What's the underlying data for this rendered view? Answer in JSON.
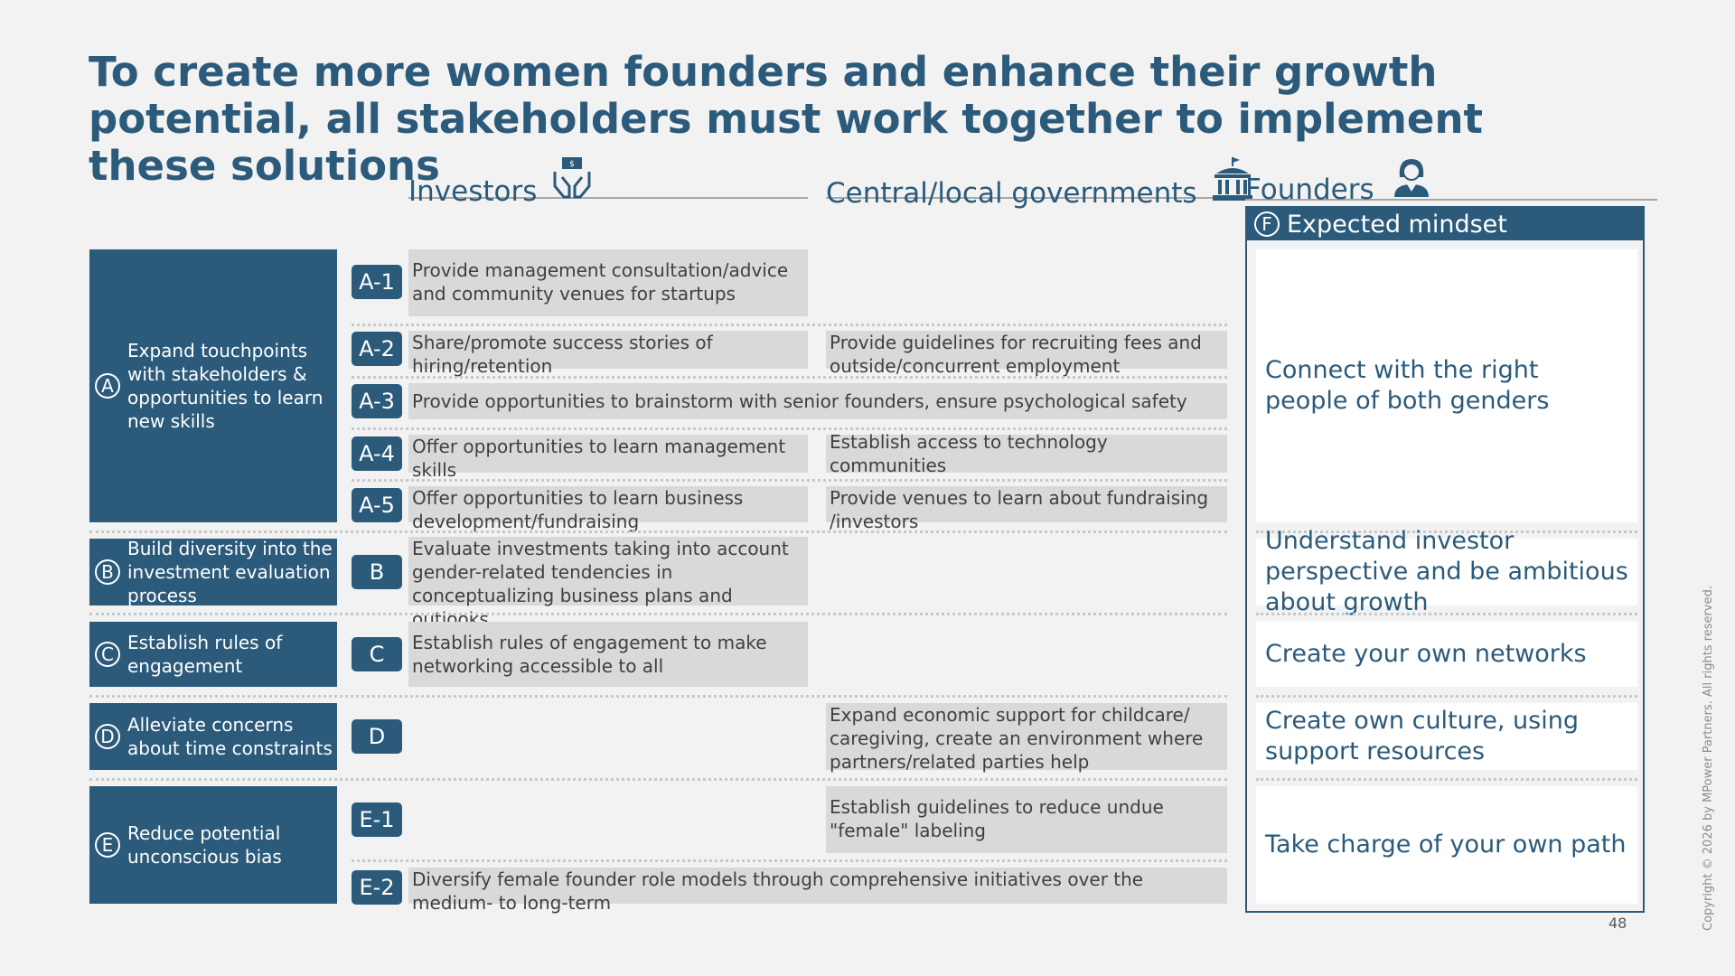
{
  "title": "To create more women founders and enhance their growth potential, all stakeholders must work together to implement these solutions",
  "columns": {
    "investors": "Investors",
    "governments": "Central/local governments",
    "founders": "Founders"
  },
  "categories": {
    "A": {
      "letter": "A",
      "label": "Expand touchpoints with stakeholders & opportunities to learn new skills"
    },
    "B": {
      "letter": "B",
      "label": "Build diversity into the investment evaluation process"
    },
    "C": {
      "letter": "C",
      "label": "Establish rules of engagement"
    },
    "D": {
      "letter": "D",
      "label": "Alleviate concerns about time constraints"
    },
    "E": {
      "letter": "E",
      "label": "Reduce potential unconscious bias"
    }
  },
  "rows": {
    "a1": {
      "badge": "A-1",
      "investors": "Provide management consultation/advice and community venues for startups"
    },
    "a2": {
      "badge": "A-2",
      "investors": "Share/promote success stories of hiring/retention",
      "governments": "Provide guidelines for recruiting fees and outside/concurrent employment"
    },
    "a3": {
      "badge": "A-3",
      "shared": "Provide opportunities to brainstorm with senior founders, ensure psychological safety"
    },
    "a4": {
      "badge": "A-4",
      "investors": "Offer opportunities to learn management skills",
      "governments": "Establish access to technology communities"
    },
    "a5": {
      "badge": "A-5",
      "investors": "Offer opportunities to learn business development/fundraising",
      "governments": "Provide venues to learn about fundraising /investors"
    },
    "b": {
      "badge": "B",
      "investors": "Evaluate investments taking into account gender-related tendencies in conceptualizing business plans and outlooks"
    },
    "c": {
      "badge": "C",
      "investors": "Establish rules of engagement to make networking accessible to all"
    },
    "d": {
      "badge": "D",
      "governments": "Expand economic support for childcare/ caregiving, create an environment where partners/related parties help"
    },
    "e1": {
      "badge": "E-1",
      "governments": "Establish guidelines to reduce undue \"female\" labeling"
    },
    "e2": {
      "badge": "E-2",
      "shared": "Diversify female founder role models through comprehensive initiatives over the medium- to long-term"
    }
  },
  "founders": {
    "letter": "F",
    "header": "Expected mindset",
    "items": [
      "Connect with the right people of both genders",
      "Understand investor perspective and be ambitious about growth",
      "Create your own networks",
      "Create own culture, using support resources",
      "Take charge of your own path"
    ]
  },
  "page_number": "48",
  "copyright": "Copyright © 2026 by MPower Partners. All rights reserved.",
  "colors": {
    "primary": "#2b5a7a",
    "cell_bg": "#d9d9d9",
    "background": "#f2f2f2"
  },
  "icons": {
    "investors": "money-hands-icon",
    "governments": "government-building-icon",
    "founders": "woman-founder-icon"
  }
}
